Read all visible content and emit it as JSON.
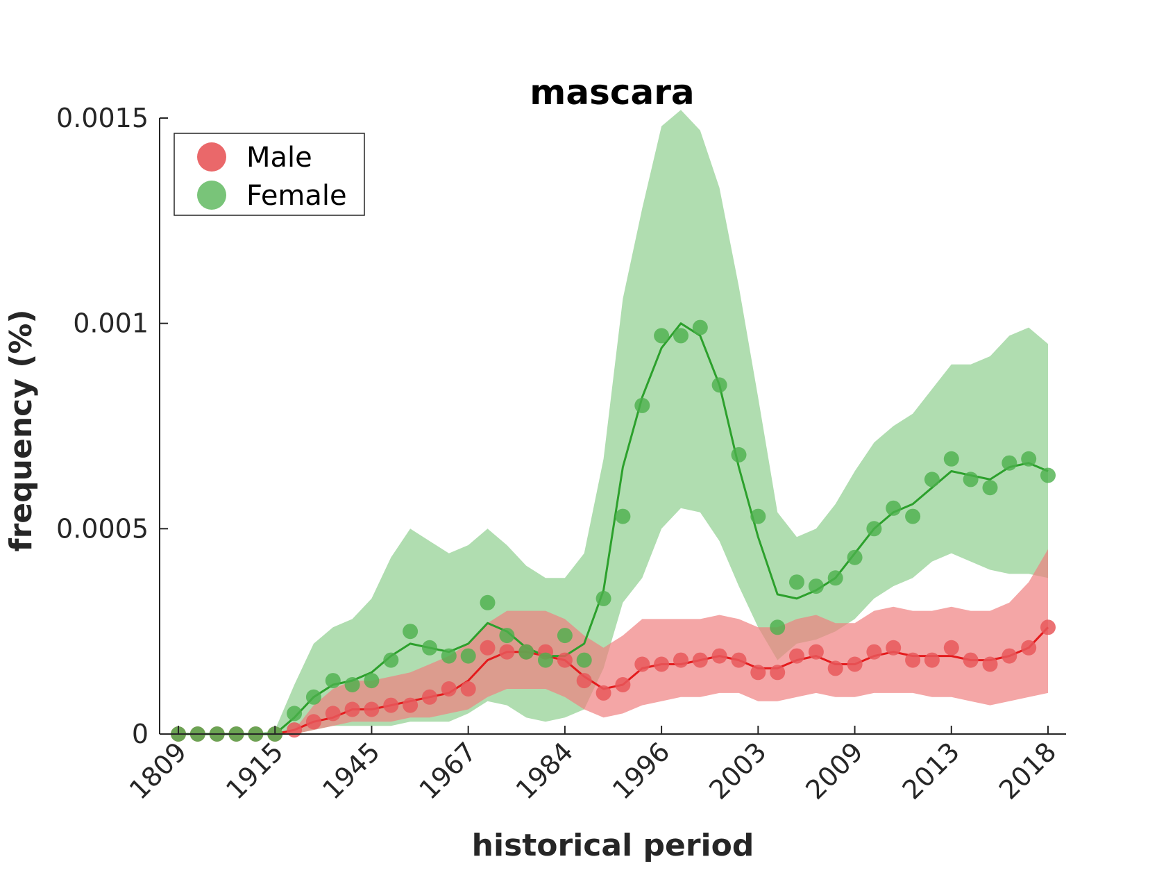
{
  "chart_data": {
    "type": "line",
    "title": "mascara",
    "xlabel": "historical period",
    "ylabel": "frequency (%)",
    "ylim": [
      0,
      0.0015
    ],
    "yticks": [
      {
        "value": 0,
        "label": "0"
      },
      {
        "value": 0.0005,
        "label": "0.0005"
      },
      {
        "value": 0.001,
        "label": "0.001"
      },
      {
        "value": 0.0015,
        "label": "0.0015"
      }
    ],
    "xticks": [
      {
        "index": 0,
        "label": "1809"
      },
      {
        "index": 5,
        "label": "1915"
      },
      {
        "index": 10,
        "label": "1945"
      },
      {
        "index": 15,
        "label": "1967"
      },
      {
        "index": 20,
        "label": "1984"
      },
      {
        "index": 25,
        "label": "1996"
      },
      {
        "index": 30,
        "label": "2003"
      },
      {
        "index": 35,
        "label": "2009"
      },
      {
        "index": 40,
        "label": "2013"
      },
      {
        "index": 45,
        "label": "2018"
      }
    ],
    "x_count": 46,
    "legend": {
      "position": "top-left"
    },
    "series": [
      {
        "name": "Male",
        "color": "#e41a1c",
        "marker_color": "#e8585a",
        "band_color": "#f08080",
        "points": [
          0,
          0,
          0,
          0,
          0,
          0,
          1e-05,
          3e-05,
          5e-05,
          6e-05,
          6e-05,
          7e-05,
          7e-05,
          9e-05,
          0.00011,
          0.00011,
          0.00021,
          0.0002,
          0.0002,
          0.0002,
          0.00018,
          0.00013,
          0.0001,
          0.00012,
          0.00017,
          0.00017,
          0.00018,
          0.00018,
          0.00019,
          0.00018,
          0.00015,
          0.00015,
          0.00019,
          0.0002,
          0.00016,
          0.00017,
          0.0002,
          0.00021,
          0.00018,
          0.00018,
          0.00021,
          0.00018,
          0.00017,
          0.00019,
          0.00021,
          0.00026
        ],
        "line": [
          0,
          0,
          0,
          0,
          0,
          0,
          1e-05,
          3e-05,
          4e-05,
          6e-05,
          6e-05,
          7e-05,
          8e-05,
          9e-05,
          0.0001,
          0.00013,
          0.00018,
          0.0002,
          0.0002,
          0.00019,
          0.00018,
          0.00014,
          0.00011,
          0.00012,
          0.00016,
          0.00017,
          0.00017,
          0.00018,
          0.00019,
          0.00018,
          0.00016,
          0.00016,
          0.00018,
          0.00019,
          0.00017,
          0.00017,
          0.00019,
          0.0002,
          0.00019,
          0.00019,
          0.00019,
          0.00018,
          0.00018,
          0.00019,
          0.00021,
          0.00026
        ],
        "band_upper": [
          0,
          0,
          0,
          0,
          0,
          0,
          1e-05,
          7e-05,
          0.00011,
          0.00013,
          0.00013,
          0.00014,
          0.00015,
          0.00017,
          0.00019,
          0.00022,
          0.00027,
          0.0003,
          0.0003,
          0.0003,
          0.00028,
          0.00024,
          0.00021,
          0.00024,
          0.00028,
          0.00028,
          0.00028,
          0.00028,
          0.00029,
          0.00028,
          0.00026,
          0.00026,
          0.00028,
          0.00029,
          0.00027,
          0.00027,
          0.0003,
          0.00031,
          0.0003,
          0.0003,
          0.00031,
          0.0003,
          0.0003,
          0.00032,
          0.00037,
          0.00045
        ],
        "band_lower": [
          0,
          0,
          0,
          0,
          0,
          0,
          0,
          1e-05,
          2e-05,
          3e-05,
          3e-05,
          3e-05,
          4e-05,
          4e-05,
          5e-05,
          6e-05,
          9e-05,
          0.00011,
          0.00011,
          0.00011,
          9e-05,
          6e-05,
          4e-05,
          5e-05,
          7e-05,
          8e-05,
          9e-05,
          9e-05,
          0.0001,
          0.0001,
          8e-05,
          8e-05,
          9e-05,
          0.0001,
          9e-05,
          9e-05,
          0.0001,
          0.0001,
          0.0001,
          9e-05,
          9e-05,
          8e-05,
          7e-05,
          8e-05,
          9e-05,
          0.0001
        ]
      },
      {
        "name": "Female",
        "color": "#2ca02c",
        "marker_color": "#4cb04c",
        "band_color": "#80c880",
        "points": [
          0,
          0,
          0,
          0,
          0,
          0,
          5e-05,
          9e-05,
          0.00013,
          0.00012,
          0.00013,
          0.00018,
          0.00025,
          0.00021,
          0.00019,
          0.00019,
          0.00032,
          0.00024,
          0.0002,
          0.00018,
          0.00024,
          0.00018,
          0.00033,
          0.00053,
          0.0008,
          0.00097,
          0.00097,
          0.00099,
          0.00085,
          0.00068,
          0.00053,
          0.00026,
          0.00037,
          0.00036,
          0.00038,
          0.00043,
          0.0005,
          0.00055,
          0.00053,
          0.00062,
          0.00067,
          0.00062,
          0.0006,
          0.00066,
          0.00067,
          0.00063
        ],
        "line": [
          0,
          0,
          0,
          0,
          0,
          0,
          4e-05,
          9e-05,
          0.00012,
          0.00013,
          0.00015,
          0.00019,
          0.00022,
          0.00021,
          0.0002,
          0.00022,
          0.00027,
          0.00025,
          0.00021,
          0.00019,
          0.00019,
          0.00022,
          0.00035,
          0.00065,
          0.00082,
          0.00094,
          0.001,
          0.00097,
          0.00085,
          0.00065,
          0.00048,
          0.00034,
          0.00033,
          0.00035,
          0.00038,
          0.00044,
          0.0005,
          0.00054,
          0.00056,
          0.0006,
          0.00064,
          0.00063,
          0.00062,
          0.00065,
          0.00066,
          0.00064
        ],
        "band_upper": [
          0,
          0,
          0,
          0,
          0,
          1e-05,
          0.00012,
          0.00022,
          0.00026,
          0.00028,
          0.00033,
          0.00043,
          0.0005,
          0.00047,
          0.00044,
          0.00046,
          0.0005,
          0.00046,
          0.00041,
          0.00038,
          0.00038,
          0.00044,
          0.00067,
          0.00106,
          0.00128,
          0.00148,
          0.00152,
          0.00147,
          0.00133,
          0.00109,
          0.00082,
          0.00054,
          0.00048,
          0.0005,
          0.00056,
          0.00064,
          0.00071,
          0.00075,
          0.00078,
          0.00084,
          0.0009,
          0.0009,
          0.00092,
          0.00097,
          0.00099,
          0.00095
        ],
        "band_lower": [
          0,
          0,
          0,
          0,
          0,
          0,
          0,
          1e-05,
          2e-05,
          2e-05,
          2e-05,
          2e-05,
          3e-05,
          3e-05,
          3e-05,
          5e-05,
          8e-05,
          7e-05,
          4e-05,
          3e-05,
          4e-05,
          6e-05,
          0.00016,
          0.00032,
          0.00038,
          0.0005,
          0.00055,
          0.00054,
          0.00047,
          0.00036,
          0.00026,
          0.00018,
          0.00022,
          0.00023,
          0.00025,
          0.00028,
          0.00033,
          0.00036,
          0.00038,
          0.00042,
          0.00044,
          0.00042,
          0.0004,
          0.00039,
          0.00039,
          0.00038
        ]
      }
    ]
  }
}
